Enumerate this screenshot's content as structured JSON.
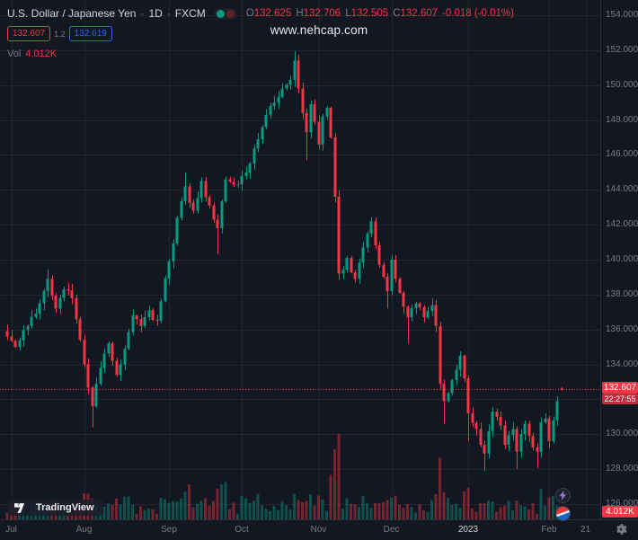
{
  "app": {
    "watermark": "www.nehcap.com"
  },
  "header": {
    "symbol_title": "U.S. Dollar / Japanese Yen",
    "sep": "·",
    "interval": "1D",
    "exchange": "FXCM",
    "ohlc": {
      "o_label": "O",
      "o_value": "132.625",
      "h_label": "H",
      "h_value": "132.706",
      "l_label": "L",
      "l_value": "132.505",
      "c_label": "C",
      "c_value": "132.607",
      "change": "-0.018 (-0.01%)"
    },
    "bid": "132.607",
    "spread": "1.2",
    "ask": "132.619",
    "vol_label": "Vol",
    "vol_value": "4.012K"
  },
  "price_axis": {
    "ticks": [
      "154.000",
      "152.000",
      "150.000",
      "148.000",
      "146.000",
      "144.000",
      "142.000",
      "140.000",
      "138.000",
      "136.000",
      "134.000",
      "132.000",
      "130.000",
      "128.000",
      "126.000"
    ],
    "current_price": "132.607",
    "countdown": "22:27:55",
    "volume_tag": "4.012K"
  },
  "time_axis": {
    "labels": [
      "Jul",
      "Aug",
      "Sep",
      "Oct",
      "Nov",
      "Dec",
      "2023",
      "Feb",
      "21"
    ]
  },
  "branding": {
    "logo_text": "TradingView"
  },
  "chart_data": {
    "type": "candlestick",
    "title": "U.S. Dollar / Japanese Yen",
    "symbol": "USD/JPY",
    "interval": "1D",
    "exchange": "FXCM",
    "last_candle": {
      "open": 132.625,
      "high": 132.706,
      "low": 132.505,
      "close": 132.607,
      "change": -0.018,
      "change_pct": -0.01
    },
    "current_price": 132.607,
    "countdown": "22:27:55",
    "last_volume": 4012,
    "y_ticks": [
      154,
      152,
      150,
      148,
      146,
      144,
      142,
      140,
      138,
      136,
      134,
      132,
      130,
      128,
      126
    ],
    "y_axis_top_price": 154,
    "x_labels": [
      {
        "label": "Jul",
        "candle_index": 1
      },
      {
        "label": "Aug",
        "candle_index": 19
      },
      {
        "label": "Sep",
        "candle_index": 40
      },
      {
        "label": "Oct",
        "candle_index": 58
      },
      {
        "label": "Nov",
        "candle_index": 77
      },
      {
        "label": "Dec",
        "candle_index": 95
      },
      {
        "label": "2023",
        "candle_index": 114
      },
      {
        "label": "Feb",
        "candle_index": 134
      },
      {
        "label": "21",
        "candle_index": 143
      }
    ],
    "n_candles": 138,
    "close_path_anchors": [
      [
        0,
        135.6
      ],
      [
        2,
        135.0
      ],
      [
        5,
        136.2
      ],
      [
        8,
        137.5
      ],
      [
        10,
        138.9
      ],
      [
        12,
        137.2
      ],
      [
        14,
        138.3
      ],
      [
        16,
        137.8
      ],
      [
        18,
        135.4
      ],
      [
        19,
        134.0
      ],
      [
        21,
        131.6
      ],
      [
        23,
        133.8
      ],
      [
        25,
        135.2
      ],
      [
        27,
        133.4
      ],
      [
        29,
        134.9
      ],
      [
        31,
        136.8
      ],
      [
        33,
        136.2
      ],
      [
        35,
        137.1
      ],
      [
        37,
        136.5
      ],
      [
        40,
        139.9
      ],
      [
        42,
        142.4
      ],
      [
        44,
        144.2
      ],
      [
        46,
        142.8
      ],
      [
        48,
        144.5
      ],
      [
        50,
        143.1
      ],
      [
        52,
        141.8
      ],
      [
        54,
        144.6
      ],
      [
        56,
        144.3
      ],
      [
        58,
        144.8
      ],
      [
        60,
        145.5
      ],
      [
        62,
        146.9
      ],
      [
        64,
        148.3
      ],
      [
        66,
        149.0
      ],
      [
        68,
        149.8
      ],
      [
        70,
        150.3
      ],
      [
        71,
        151.4
      ],
      [
        72,
        149.8
      ],
      [
        73,
        148.4
      ],
      [
        74,
        147.3
      ],
      [
        75,
        148.9
      ],
      [
        76,
        147.9
      ],
      [
        77,
        146.6
      ],
      [
        78,
        148.2
      ],
      [
        79,
        148.7
      ],
      [
        80,
        147.0
      ],
      [
        81,
        143.6
      ],
      [
        82,
        139.2
      ],
      [
        84,
        140.1
      ],
      [
        86,
        138.9
      ],
      [
        88,
        140.7
      ],
      [
        90,
        142.2
      ],
      [
        92,
        139.7
      ],
      [
        94,
        138.2
      ],
      [
        95,
        140.0
      ],
      [
        97,
        138.1
      ],
      [
        99,
        136.7
      ],
      [
        101,
        137.5
      ],
      [
        103,
        136.7
      ],
      [
        105,
        137.4
      ],
      [
        106,
        136.2
      ],
      [
        107,
        132.9
      ],
      [
        108,
        131.9
      ],
      [
        110,
        133.1
      ],
      [
        112,
        134.5
      ],
      [
        113,
        133.2
      ],
      [
        114,
        131.2
      ],
      [
        116,
        130.3
      ],
      [
        118,
        128.9
      ],
      [
        120,
        131.3
      ],
      [
        122,
        130.5
      ],
      [
        123,
        129.4
      ],
      [
        125,
        130.3
      ],
      [
        126,
        129.0
      ],
      [
        128,
        130.6
      ],
      [
        129,
        129.9
      ],
      [
        131,
        129.0
      ],
      [
        132,
        130.7
      ],
      [
        133,
        130.9
      ],
      [
        134,
        129.6
      ],
      [
        135,
        130.8
      ],
      [
        136,
        131.9
      ],
      [
        137,
        132.607
      ]
    ],
    "wick_extremes": [
      [
        10,
        "high",
        139.45
      ],
      [
        21,
        "low",
        130.4
      ],
      [
        44,
        "high",
        145.0
      ],
      [
        52,
        "low",
        140.3
      ],
      [
        71,
        "high",
        151.95
      ],
      [
        74,
        "low",
        145.7
      ],
      [
        94,
        "low",
        137.2
      ],
      [
        99,
        "low",
        135.2
      ],
      [
        108,
        "low",
        130.6
      ],
      [
        114,
        "low",
        129.6
      ],
      [
        118,
        "low",
        127.9
      ],
      [
        126,
        "low",
        128.0
      ],
      [
        131,
        "low",
        128.05
      ]
    ],
    "volume_boost_ranges": [
      [
        44,
        62,
        1.5
      ],
      [
        80,
        83,
        1.7
      ],
      [
        106,
        109,
        1.6
      ]
    ],
    "colors": {
      "up": "#089981",
      "down": "#f23645",
      "volume_up": "rgba(8,153,129,0.45)",
      "volume_down": "rgba(242,54,69,0.45)",
      "grid": "rgba(42,46,57,0.6)",
      "price_line": "#f23645",
      "axis_text": "#787b86",
      "background": "#131722"
    },
    "seed": 42
  }
}
